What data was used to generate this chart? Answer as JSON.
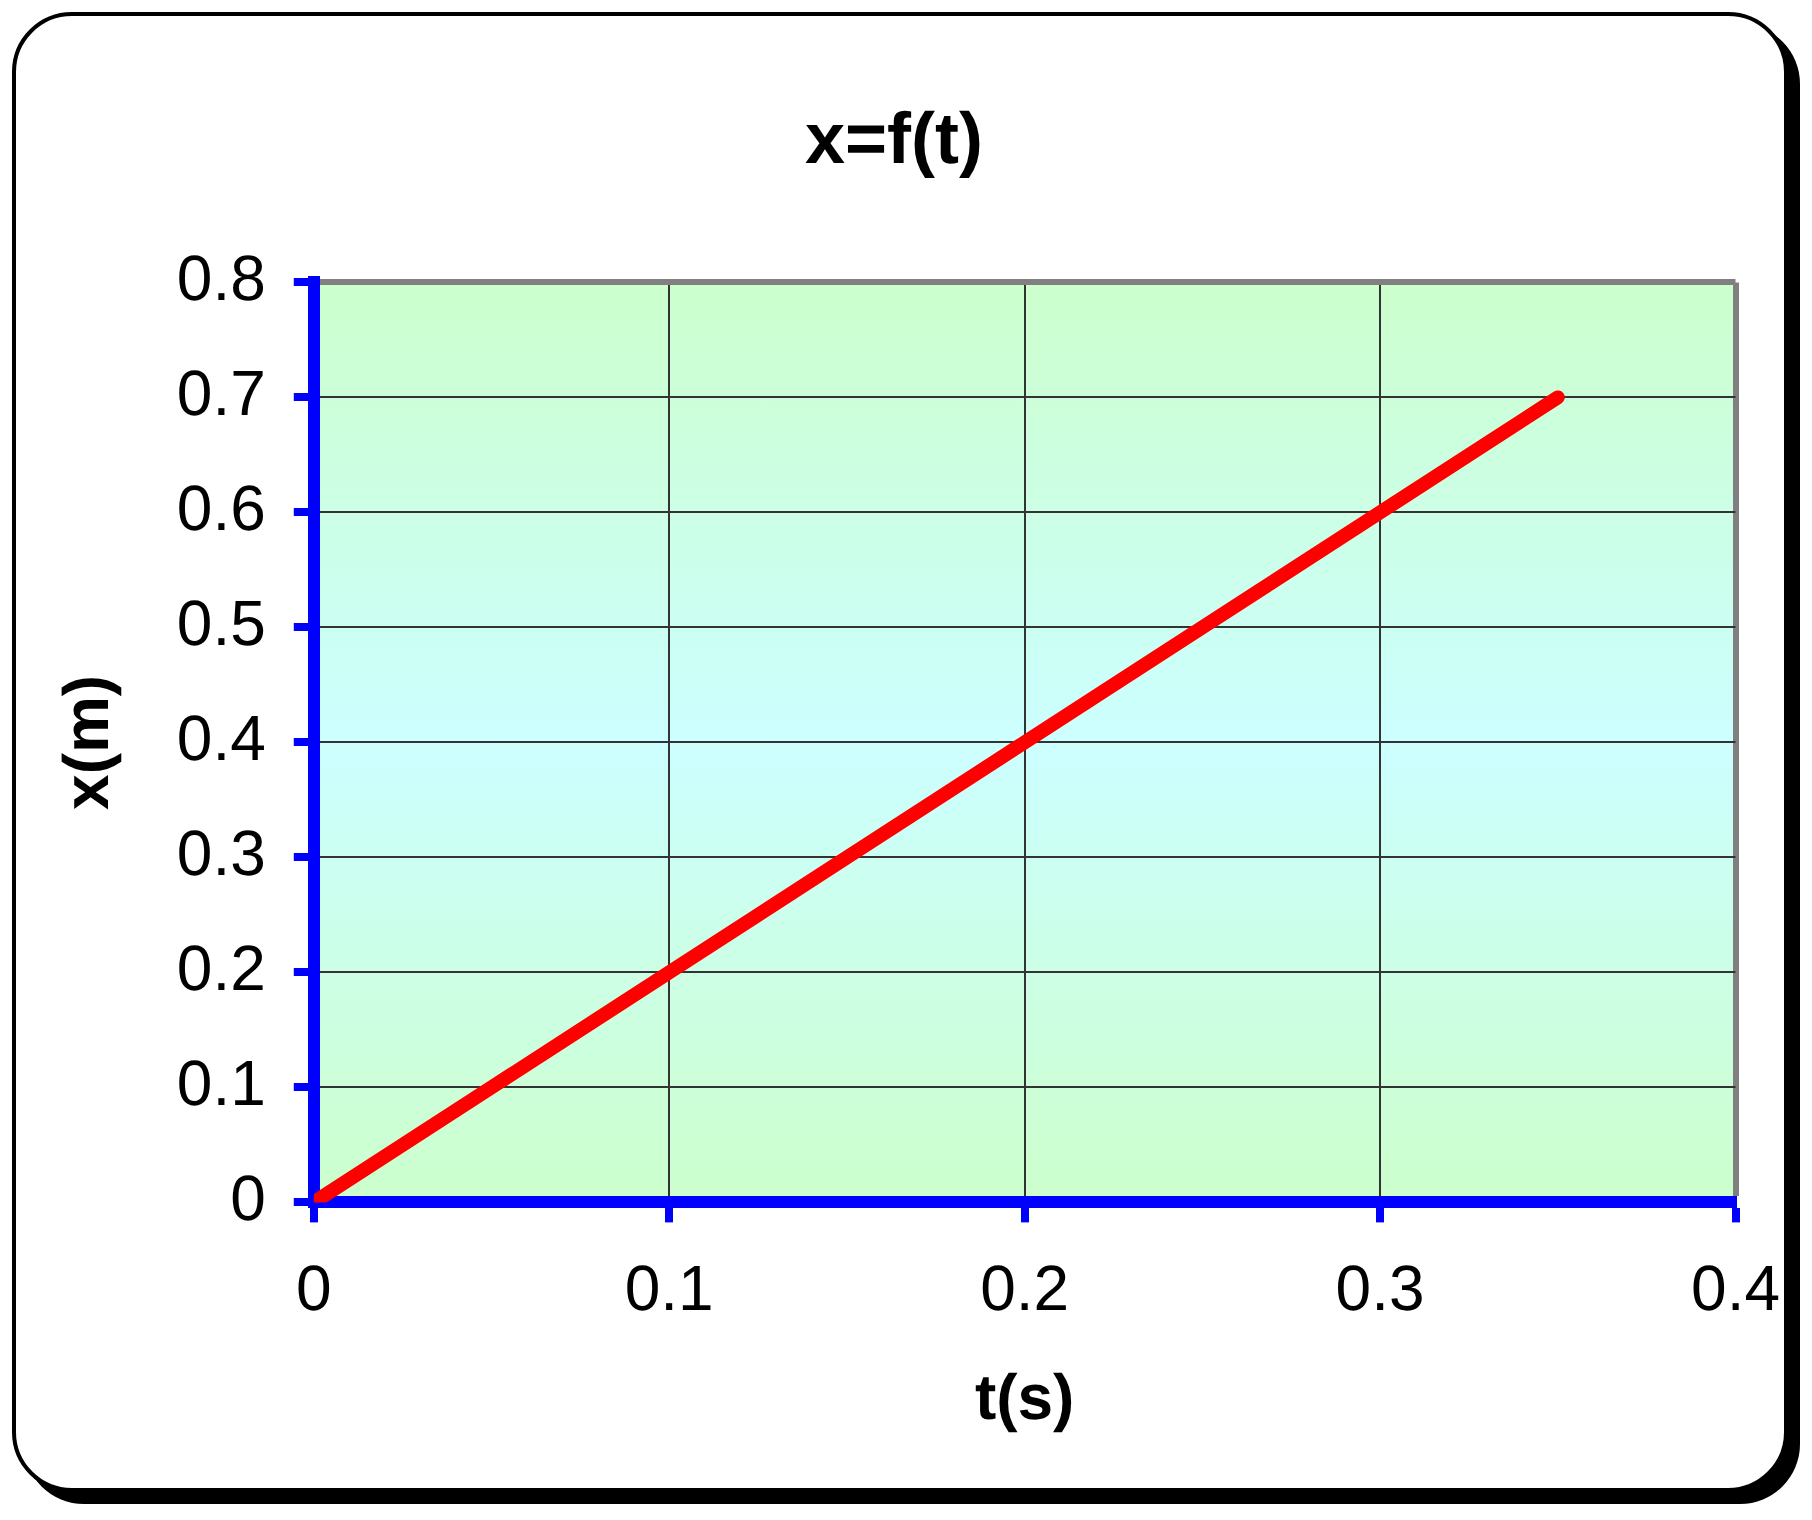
{
  "chart_data": {
    "type": "line",
    "title": "x=f(t)",
    "xlabel": "t(s)",
    "ylabel": "x(m)",
    "x": [
      0,
      0.05,
      0.1,
      0.15,
      0.2,
      0.25,
      0.3,
      0.35
    ],
    "series": [
      {
        "color": "#ff0000",
        "values": [
          0,
          0.1,
          0.2,
          0.3,
          0.4,
          0.5,
          0.6,
          0.7
        ]
      }
    ],
    "xlim": [
      0,
      0.4
    ],
    "xticks": [
      0,
      0.1,
      0.2,
      0.3,
      0.4
    ],
    "ylim": [
      0,
      0.8
    ],
    "yticks": [
      0,
      0.1,
      0.2,
      0.3,
      0.4,
      0.5,
      0.6,
      0.7,
      0.8
    ],
    "grid": true,
    "legend": false,
    "marker": "none",
    "line_style": "solid"
  }
}
